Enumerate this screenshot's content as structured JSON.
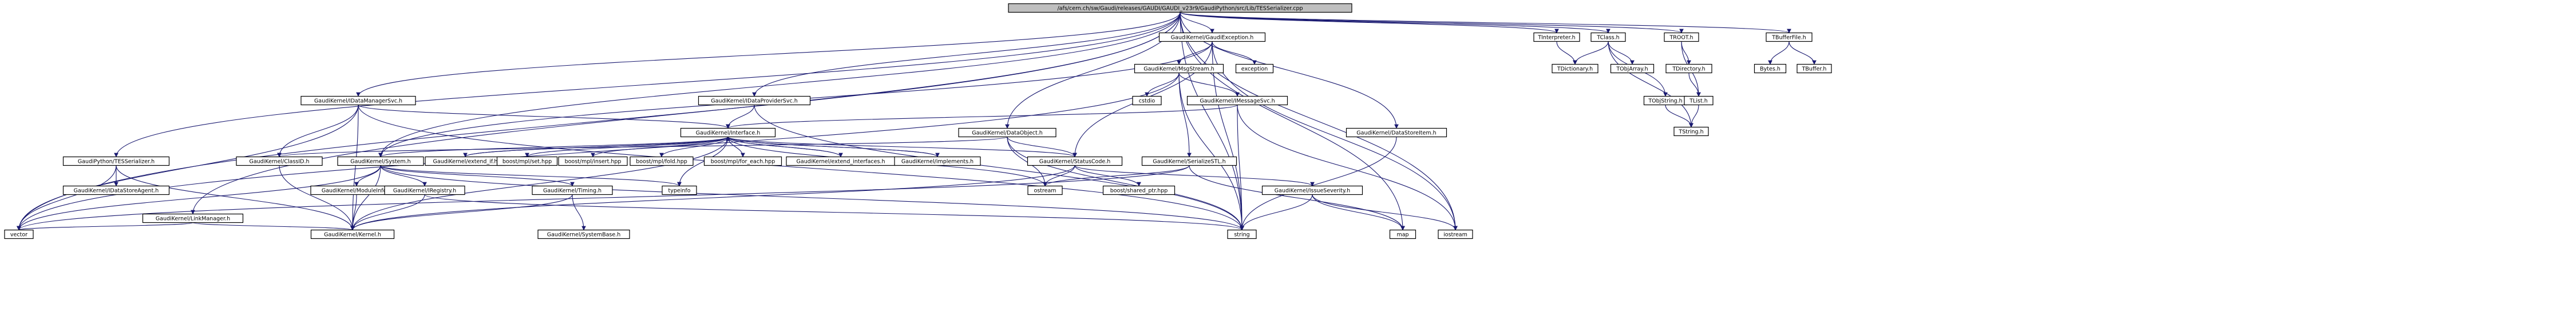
{
  "colors": {
    "node_fill": "#ffffff",
    "node_border": "#000000",
    "root_fill": "#bfbfbf",
    "missing_border": "#ff0000",
    "edge": "#191970",
    "arrowhead": "#191970"
  },
  "root": "/afs/cern.ch/sw/Gaudi/releases/GAUDI/GAUDI_v23r9/GaudiPython/src/Lib/TESSerializer.cpp",
  "nodes": [
    {
      "id": "root",
      "label": "/afs/cern.ch/sw/Gaudi/releases/GAUDI/GAUDI_v23r9/GaudiPython/src/Lib/TESSerializer.cpp",
      "kind": "root"
    },
    {
      "id": "n_exception_h",
      "label": "GaudiKernel/GaudiException.h",
      "kind": "normal"
    },
    {
      "id": "n_tinterpreter",
      "label": "TInterpreter.h",
      "kind": "normal"
    },
    {
      "id": "n_tclass",
      "label": "TClass.h",
      "kind": "normal"
    },
    {
      "id": "n_troot",
      "label": "TROOT.h",
      "kind": "normal"
    },
    {
      "id": "n_tbufferfile",
      "label": "TBufferFile.h",
      "kind": "normal"
    },
    {
      "id": "n_msgstream",
      "label": "GaudiKernel/MsgStream.h",
      "kind": "missing"
    },
    {
      "id": "n_exception",
      "label": "exception",
      "kind": "normal"
    },
    {
      "id": "n_tdictionary",
      "label": "TDictionary.h",
      "kind": "missing"
    },
    {
      "id": "n_tobjarray",
      "label": "TObjArray.h",
      "kind": "missing"
    },
    {
      "id": "n_tdirectory",
      "label": "TDirectory.h",
      "kind": "missing"
    },
    {
      "id": "n_bytes",
      "label": "Bytes.h",
      "kind": "missing"
    },
    {
      "id": "n_tbuffer",
      "label": "TBuffer.h",
      "kind": "missing"
    },
    {
      "id": "n_idatamanagersvc",
      "label": "GaudiKernel/IDataManagerSvc.h",
      "kind": "normal"
    },
    {
      "id": "n_idataprovidersvc",
      "label": "GaudiKernel/IDataProviderSvc.h",
      "kind": "normal"
    },
    {
      "id": "n_cstdio",
      "label": "cstdio",
      "kind": "normal"
    },
    {
      "id": "n_imessagesvc",
      "label": "GaudiKernel/IMessageSvc.h",
      "kind": "normal"
    },
    {
      "id": "n_tobjstring",
      "label": "TObjString.h",
      "kind": "missing"
    },
    {
      "id": "n_tlist",
      "label": "TList.h",
      "kind": "missing"
    },
    {
      "id": "n_tstring",
      "label": "TString.h",
      "kind": "missing"
    },
    {
      "id": "n_interface",
      "label": "GaudiKernel/Interface.h",
      "kind": "normal"
    },
    {
      "id": "n_dataobject",
      "label": "GaudiKernel/DataObject.h",
      "kind": "normal"
    },
    {
      "id": "n_datastoreitem",
      "label": "GaudiKernel/DataStoreItem.h",
      "kind": "normal"
    },
    {
      "id": "n_tesserializer_h",
      "label": "GaudiPython/TESSerializer.h",
      "kind": "normal"
    },
    {
      "id": "n_classid",
      "label": "GaudiKernel/ClassID.h",
      "kind": "normal"
    },
    {
      "id": "n_system",
      "label": "GaudiKernel/System.h",
      "kind": "normal"
    },
    {
      "id": "n_extendif",
      "label": "GaudiKernel/extend_if.h",
      "kind": "normal"
    },
    {
      "id": "n_mpl_set",
      "label": "boost/mpl/set.hpp",
      "kind": "normal"
    },
    {
      "id": "n_mpl_insert",
      "label": "boost/mpl/insert.hpp",
      "kind": "normal"
    },
    {
      "id": "n_mpl_fold",
      "label": "boost/mpl/fold.hpp",
      "kind": "normal"
    },
    {
      "id": "n_mpl_foreach",
      "label": "boost/mpl/for_each.hpp",
      "kind": "normal"
    },
    {
      "id": "n_extendinterfaces",
      "label": "GaudiKernel/extend_interfaces.h",
      "kind": "normal"
    },
    {
      "id": "n_implements",
      "label": "GaudiKernel/implements.h",
      "kind": "normal"
    },
    {
      "id": "n_statuscode",
      "label": "GaudiKernel/StatusCode.h",
      "kind": "normal"
    },
    {
      "id": "n_serializestl",
      "label": "GaudiKernel/SerializeSTL.h",
      "kind": "missing"
    },
    {
      "id": "n_idatastoreagent",
      "label": "GaudiKernel/IDataStoreAgent.h",
      "kind": "normal"
    },
    {
      "id": "n_linkmanager",
      "label": "GaudiKernel/LinkManager.h",
      "kind": "normal"
    },
    {
      "id": "n_moduleinfo",
      "label": "GaudiKernel/ModuleInfo.h",
      "kind": "normal"
    },
    {
      "id": "n_iregistry",
      "label": "GaudiKernel/IRegistry.h",
      "kind": "normal"
    },
    {
      "id": "n_timing",
      "label": "GaudiKernel/Timing.h",
      "kind": "normal"
    },
    {
      "id": "n_typeinfo",
      "label": "typeinfo",
      "kind": "normal"
    },
    {
      "id": "n_ostream",
      "label": "ostream",
      "kind": "normal"
    },
    {
      "id": "n_shared_ptr",
      "label": "boost/shared_ptr.hpp",
      "kind": "normal"
    },
    {
      "id": "n_issueseverity",
      "label": "GaudiKernel/IssueSeverity.h",
      "kind": "normal"
    },
    {
      "id": "n_vector",
      "label": "vector",
      "kind": "normal"
    },
    {
      "id": "n_kernel",
      "label": "GaudiKernel/Kernel.h",
      "kind": "normal"
    },
    {
      "id": "n_systembase",
      "label": "GaudiKernel/SystemBase.h",
      "kind": "normal"
    },
    {
      "id": "n_string",
      "label": "string",
      "kind": "normal"
    },
    {
      "id": "n_map",
      "label": "map",
      "kind": "normal"
    },
    {
      "id": "n_iostream",
      "label": "iostream",
      "kind": "normal"
    }
  ],
  "edges": [
    [
      "root",
      "n_exception_h"
    ],
    [
      "root",
      "n_tinterpreter"
    ],
    [
      "root",
      "n_tclass"
    ],
    [
      "root",
      "n_troot"
    ],
    [
      "root",
      "n_tbufferfile"
    ],
    [
      "root",
      "n_idatamanagersvc"
    ],
    [
      "root",
      "n_idataprovidersvc"
    ],
    [
      "root",
      "n_datastoreitem"
    ],
    [
      "root",
      "n_tesserializer_h"
    ],
    [
      "root",
      "n_linkmanager"
    ],
    [
      "root",
      "n_system"
    ],
    [
      "root",
      "n_dataobject"
    ],
    [
      "root",
      "n_iostream"
    ],
    [
      "root",
      "n_string"
    ],
    [
      "root",
      "n_vector"
    ],
    [
      "root",
      "n_map"
    ],
    [
      "n_exception_h",
      "n_msgstream"
    ],
    [
      "n_exception_h",
      "n_exception"
    ],
    [
      "n_exception_h",
      "n_system"
    ],
    [
      "n_exception_h",
      "n_statuscode"
    ],
    [
      "n_exception_h",
      "n_string"
    ],
    [
      "n_exception_h",
      "n_iostream"
    ],
    [
      "n_tinterpreter",
      "n_tdictionary"
    ],
    [
      "n_tclass",
      "n_tdictionary"
    ],
    [
      "n_tclass",
      "n_tobjarray"
    ],
    [
      "n_tclass",
      "n_tobjstring"
    ],
    [
      "n_tclass",
      "n_tstring"
    ],
    [
      "n_troot",
      "n_tdirectory"
    ],
    [
      "n_troot",
      "n_tlist"
    ],
    [
      "n_tdirectory",
      "n_tlist"
    ],
    [
      "n_tlist",
      "n_tstring"
    ],
    [
      "n_tobjstring",
      "n_tstring"
    ],
    [
      "n_tbufferfile",
      "n_bytes"
    ],
    [
      "n_tbufferfile",
      "n_tbuffer"
    ],
    [
      "n_msgstream",
      "n_cstdio"
    ],
    [
      "n_msgstream",
      "n_imessagesvc"
    ],
    [
      "n_msgstream",
      "n_serializestl"
    ],
    [
      "n_msgstream",
      "n_string"
    ],
    [
      "n_msgstream",
      "n_vector"
    ],
    [
      "n_imessagesvc",
      "n_interface"
    ],
    [
      "n_imessagesvc",
      "n_string"
    ],
    [
      "n_imessagesvc",
      "n_iostream"
    ],
    [
      "n_idatamanagersvc",
      "n_interface"
    ],
    [
      "n_idatamanagersvc",
      "n_classid"
    ],
    [
      "n_idatamanagersvc",
      "n_kernel"
    ],
    [
      "n_idatamanagersvc",
      "n_string"
    ],
    [
      "n_idatamanagersvc",
      "n_vector"
    ],
    [
      "n_idataprovidersvc",
      "n_interface"
    ],
    [
      "n_idataprovidersvc",
      "n_string"
    ],
    [
      "n_interface",
      "n_kernel"
    ],
    [
      "n_interface",
      "n_system"
    ],
    [
      "n_interface",
      "n_statuscode"
    ],
    [
      "n_interface",
      "n_extendif"
    ],
    [
      "n_interface",
      "n_mpl_set"
    ],
    [
      "n_interface",
      "n_mpl_insert"
    ],
    [
      "n_interface",
      "n_mpl_fold"
    ],
    [
      "n_interface",
      "n_mpl_foreach"
    ],
    [
      "n_interface",
      "n_extendinterfaces"
    ],
    [
      "n_interface",
      "n_implements"
    ],
    [
      "n_interface",
      "n_typeinfo"
    ],
    [
      "n_interface",
      "n_ostream"
    ],
    [
      "n_extendif",
      "n_interface"
    ],
    [
      "n_extendinterfaces",
      "n_interface"
    ],
    [
      "n_implements",
      "n_interface"
    ],
    [
      "n_dataobject",
      "n_classid"
    ],
    [
      "n_dataobject",
      "n_statuscode"
    ],
    [
      "n_dataobject",
      "n_string"
    ],
    [
      "n_dataobject",
      "n_ostream"
    ],
    [
      "n_datastoreitem",
      "n_string"
    ],
    [
      "n_tesserializer_h",
      "n_idatastoreagent"
    ],
    [
      "n_tesserializer_h",
      "n_vector"
    ],
    [
      "n_tesserializer_h",
      "n_kernel"
    ],
    [
      "n_classid",
      "n_kernel"
    ],
    [
      "n_system",
      "n_kernel"
    ],
    [
      "n_system",
      "n_moduleinfo"
    ],
    [
      "n_system",
      "n_iregistry"
    ],
    [
      "n_system",
      "n_timing"
    ],
    [
      "n_system",
      "n_typeinfo"
    ],
    [
      "n_system",
      "n_string"
    ],
    [
      "n_system",
      "n_vector"
    ],
    [
      "n_moduleinfo",
      "n_kernel"
    ],
    [
      "n_iregistry",
      "n_kernel"
    ],
    [
      "n_iregistry",
      "n_string"
    ],
    [
      "n_timing",
      "n_systembase"
    ],
    [
      "n_timing",
      "n_kernel"
    ],
    [
      "n_statuscode",
      "n_ostream"
    ],
    [
      "n_statuscode",
      "n_shared_ptr"
    ],
    [
      "n_statuscode",
      "n_issueseverity"
    ],
    [
      "n_statuscode",
      "n_kernel"
    ],
    [
      "n_issueseverity",
      "n_map"
    ],
    [
      "n_issueseverity",
      "n_string"
    ],
    [
      "n_issueseverity",
      "n_iostream"
    ],
    [
      "n_serializestl",
      "n_ostream"
    ],
    [
      "n_serializestl",
      "n_map"
    ],
    [
      "n_serializestl",
      "n_vector"
    ],
    [
      "n_linkmanager",
      "n_vector"
    ],
    [
      "n_linkmanager",
      "n_kernel"
    ]
  ]
}
